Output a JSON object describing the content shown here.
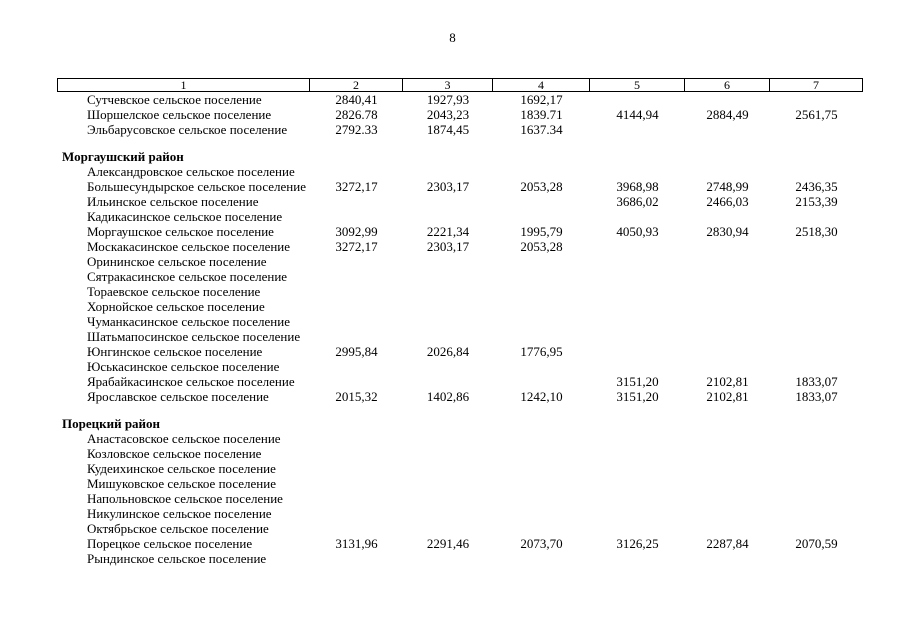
{
  "page": {
    "number": "8"
  },
  "table": {
    "columns": [
      "1",
      "2",
      "3",
      "4",
      "5",
      "6",
      "7"
    ],
    "rows": [
      {
        "type": "settlement",
        "name": "Сутчевское сельское поселение",
        "values": [
          "2840,41",
          "1927,93",
          "1692,17",
          "",
          "",
          ""
        ]
      },
      {
        "type": "settlement",
        "name": "Шоршелское сельское поселение",
        "values": [
          "2826.78",
          "2043,23",
          "1839.71",
          "4144,94",
          "2884,49",
          "2561,75"
        ]
      },
      {
        "type": "settlement",
        "name": "Эльбарусовское сельское поселение",
        "values": [
          "2792.33",
          "1874,45",
          "1637.34",
          "",
          "",
          ""
        ]
      },
      {
        "type": "spacer"
      },
      {
        "type": "district",
        "name": "Моргаушский район",
        "values": []
      },
      {
        "type": "settlement",
        "name": "Александровское сельское поселение",
        "values": [
          "",
          "",
          "",
          "",
          "",
          ""
        ]
      },
      {
        "type": "settlement",
        "name": "Большесундырское сельское поселение",
        "values": [
          "3272,17",
          "2303,17",
          "2053,28",
          "3968,98",
          "2748,99",
          "2436,35"
        ]
      },
      {
        "type": "settlement",
        "name": "Ильинское сельское поселение",
        "values": [
          "",
          "",
          "",
          "3686,02",
          "2466,03",
          "2153,39"
        ]
      },
      {
        "type": "settlement",
        "name": "Кадикасинское сельское поселение",
        "values": [
          "",
          "",
          "",
          "",
          "",
          ""
        ]
      },
      {
        "type": "settlement",
        "name": "Моргаушское сельское поселение",
        "values": [
          "3092,99",
          "2221,34",
          "1995,79",
          "4050,93",
          "2830,94",
          "2518,30"
        ]
      },
      {
        "type": "settlement",
        "name": "Москакасинское сельское поселение",
        "values": [
          "3272,17",
          "2303,17",
          "2053,28",
          "",
          "",
          ""
        ]
      },
      {
        "type": "settlement",
        "name": "Орининское сельское поселение",
        "values": [
          "",
          "",
          "",
          "",
          "",
          ""
        ]
      },
      {
        "type": "settlement",
        "name": "Сятракасинское сельское поселение",
        "values": [
          "",
          "",
          "",
          "",
          "",
          ""
        ]
      },
      {
        "type": "settlement",
        "name": "Тораевское сельское поселение",
        "values": [
          "",
          "",
          "",
          "",
          "",
          ""
        ]
      },
      {
        "type": "settlement",
        "name": "Хорнойское сельское поселение",
        "values": [
          "",
          "",
          "",
          "",
          "",
          ""
        ]
      },
      {
        "type": "settlement",
        "name": "Чуманкасинское сельское поселение",
        "values": [
          "",
          "",
          "",
          "",
          "",
          ""
        ]
      },
      {
        "type": "settlement",
        "name": "Шатьмапосинское сельское поселение",
        "values": [
          "",
          "",
          "",
          "",
          "",
          ""
        ]
      },
      {
        "type": "settlement",
        "name": "Юнгинское сельское поселение",
        "values": [
          "2995,84",
          "2026,84",
          "1776,95",
          "",
          "",
          ""
        ]
      },
      {
        "type": "settlement",
        "name": "Юськасинское сельское поселение",
        "values": [
          "",
          "",
          "",
          "",
          "",
          ""
        ]
      },
      {
        "type": "settlement",
        "name": "Ярабайкасинское сельское поселение",
        "values": [
          "",
          "",
          "",
          "3151,20",
          "2102,81",
          "1833,07"
        ]
      },
      {
        "type": "settlement",
        "name": "Ярославское сельское поселение",
        "values": [
          "2015,32",
          "1402,86",
          "1242,10",
          "3151,20",
          "2102,81",
          "1833,07"
        ]
      },
      {
        "type": "spacer"
      },
      {
        "type": "district",
        "name": "Порецкий район",
        "values": []
      },
      {
        "type": "settlement",
        "name": "Анастасовское сельское поселение",
        "values": [
          "",
          "",
          "",
          "",
          "",
          ""
        ]
      },
      {
        "type": "settlement",
        "name": "Козловское сельское поселение",
        "values": [
          "",
          "",
          "",
          "",
          "",
          ""
        ]
      },
      {
        "type": "settlement",
        "name": "Кудеихинское сельское поселение",
        "values": [
          "",
          "",
          "",
          "",
          "",
          ""
        ]
      },
      {
        "type": "settlement",
        "name": "Мишуковское сельское поселение",
        "values": [
          "",
          "",
          "",
          "",
          "",
          ""
        ]
      },
      {
        "type": "settlement",
        "name": "Напольновское сельское поселение",
        "values": [
          "",
          "",
          "",
          "",
          "",
          ""
        ]
      },
      {
        "type": "settlement",
        "name": "Никулинское сельское поселение",
        "values": [
          "",
          "",
          "",
          "",
          "",
          ""
        ]
      },
      {
        "type": "settlement",
        "name": "Октябрьское сельское поселение",
        "values": [
          "",
          "",
          "",
          "",
          "",
          ""
        ]
      },
      {
        "type": "settlement",
        "name": "Порецкое сельское поселение",
        "values": [
          "3131,96",
          "2291,46",
          "2073,70",
          "3126,25",
          "2287,84",
          "2070,59"
        ]
      },
      {
        "type": "settlement",
        "name": "Рындинское сельское поселение",
        "values": [
          "",
          "",
          "",
          "",
          "",
          ""
        ]
      }
    ]
  }
}
